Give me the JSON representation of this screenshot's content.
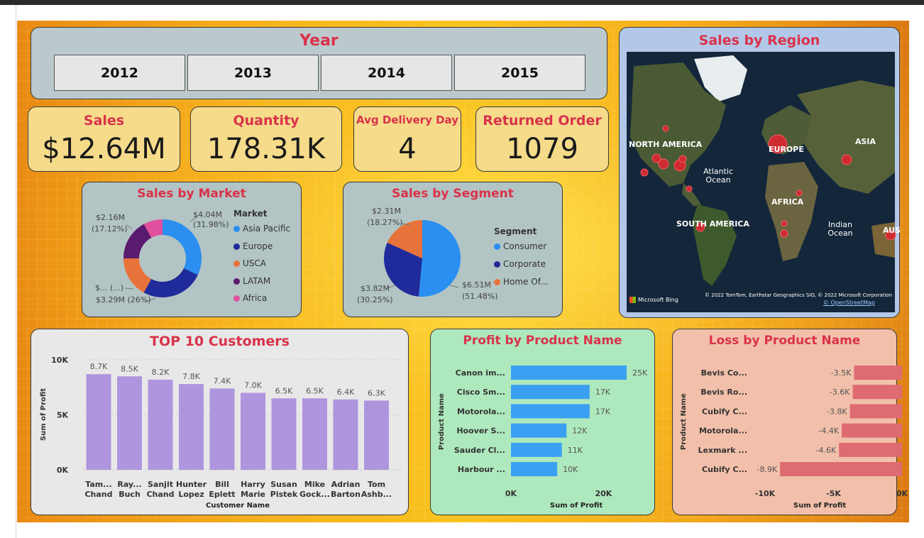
{
  "year_slicer": {
    "title": "Year",
    "options": [
      "2012",
      "2013",
      "2014",
      "2015"
    ]
  },
  "kpis": {
    "sales": {
      "label": "Sales",
      "value": "$12.64M"
    },
    "quantity": {
      "label": "Quantity",
      "value": "178.31K"
    },
    "avg_delivery": {
      "label": "Avg Delivery Day",
      "value": "4"
    },
    "returned": {
      "label": "Returned Order",
      "value": "1079"
    }
  },
  "market": {
    "title": "Sales by Market",
    "legend_title": "Market",
    "legend": [
      "Asia Pacific",
      "Europe",
      "USCA",
      "LATAM",
      "Africa"
    ],
    "labels": {
      "asia": [
        "$4.04M",
        "(31.98%)"
      ],
      "latam": [
        "$2.16M",
        "(17.12%)"
      ],
      "usca": [
        "$... (...)"
      ],
      "europe": [
        "$3.29M (26%)"
      ]
    }
  },
  "segment": {
    "title": "Sales by Segment",
    "legend_title": "Segment",
    "legend": [
      "Consumer",
      "Corporate",
      "Home Of..."
    ],
    "labels": {
      "home": [
        "$2.31M",
        "(18.27%)"
      ],
      "corporate": [
        "$3.82M",
        "(30.25%)"
      ],
      "consumer": [
        "$6.51M",
        "(51.48%)"
      ]
    }
  },
  "map": {
    "title": "Sales by Region",
    "labels": {
      "north_america": "NORTH AMERICA",
      "europe": "EUROPE",
      "asia": "ASIA",
      "atlantic": "Atlantic Ocean",
      "africa": "AFRICA",
      "south_america": "SOUTH AMERICA",
      "indian": "Indian Ocean",
      "aus": "AUS"
    },
    "bing": "Microsoft Bing",
    "copyright": "© 2022 TomTom, Earthstar Geographics SIO, © 2022 Microsoft Corporation",
    "osm": "© OpenStreetMap"
  },
  "colors": {
    "title_red": "#d9324a",
    "asia_pacific": "#2a8ff0",
    "europe": "#1f2b9a",
    "usca": "#e8733a",
    "latam": "#5a1a6e",
    "africa": "#e0509e",
    "customers_bar": "#ae95de",
    "profit_bar": "#3aa0f2",
    "loss_bar": "#de6a72"
  },
  "chart_data": [
    {
      "type": "pie",
      "title": "Sales by Market",
      "categories": [
        "Asia Pacific",
        "Europe",
        "USCA",
        "LATAM",
        "Africa"
      ],
      "values": [
        31.98,
        26.0,
        17.0,
        17.12,
        7.9
      ],
      "value_labels": [
        "$4.04M (31.98%)",
        "$3.29M (26%)",
        "$... (...)",
        "$2.16M (17.12%)",
        ""
      ],
      "donut": true,
      "legend_position": "right"
    },
    {
      "type": "pie",
      "title": "Sales by Segment",
      "categories": [
        "Consumer",
        "Corporate",
        "Home Of..."
      ],
      "values": [
        51.48,
        30.25,
        18.27
      ],
      "value_labels": [
        "$6.51M (51.48%)",
        "$3.82M (30.25%)",
        "$2.31M (18.27%)"
      ],
      "legend_position": "right"
    },
    {
      "type": "bar",
      "title": "TOP 10 Customers",
      "categories": [
        [
          "Tam...",
          "Chand"
        ],
        [
          "Ray...",
          "Buch"
        ],
        [
          "Sanjit",
          "Chand"
        ],
        [
          "Hunter",
          "Lopez"
        ],
        [
          "Bill",
          "Eplett"
        ],
        [
          "Harry",
          "Marie"
        ],
        [
          "Susan",
          "Pistek"
        ],
        [
          "Mike",
          "Gock..."
        ],
        [
          "Adrian",
          "Barton"
        ],
        [
          "Tom",
          "Ashb..."
        ]
      ],
      "values": [
        8700,
        8500,
        8200,
        7800,
        7400,
        7000,
        6500,
        6500,
        6400,
        6300
      ],
      "data_labels": [
        "8.7K",
        "8.5K",
        "8.2K",
        "7.8K",
        "7.4K",
        "7.0K",
        "6.5K",
        "6.5K",
        "6.4K",
        "6.3K"
      ],
      "xlabel": "Customer Name",
      "ylabel": "Sum of Profit",
      "yticks": [
        "0K",
        "5K",
        "10K"
      ],
      "ylim": [
        0,
        10000
      ],
      "grid": true
    },
    {
      "type": "bar",
      "orientation": "horizontal",
      "title": "Profit by Product Name",
      "categories": [
        "Canon im...",
        "Cisco Sm...",
        "Motorola...",
        "Hoover S...",
        "Sauder Cl...",
        "Harbour ..."
      ],
      "values": [
        25000,
        17000,
        17000,
        12000,
        11000,
        10000
      ],
      "data_labels": [
        "25K",
        "17K",
        "17K",
        "12K",
        "11K",
        "10K"
      ],
      "xlabel": "Sum of Profit",
      "ylabel": "Product Name",
      "xticks": [
        "0K",
        "20K"
      ],
      "xlim": [
        0,
        27000
      ]
    },
    {
      "type": "bar",
      "orientation": "horizontal",
      "title": "Loss by Product Name",
      "categories": [
        "Bevis Co...",
        "Bevis Ro...",
        "Cubify C...",
        "Motorola...",
        "Lexmark ...",
        "Cubify C..."
      ],
      "values": [
        -3500,
        -3600,
        -3800,
        -4400,
        -4600,
        -8900
      ],
      "data_labels": [
        "-3.5K",
        "-3.6K",
        "-3.8K",
        "-4.4K",
        "-4.6K",
        "-8.9K"
      ],
      "xlabel": "Sum of Profit",
      "ylabel": "Product Name",
      "xticks": [
        "-10K",
        "-5K",
        "0K"
      ],
      "xlim": [
        -10000,
        0
      ]
    }
  ]
}
